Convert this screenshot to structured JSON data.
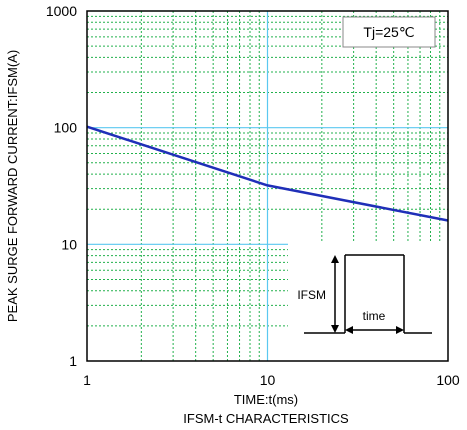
{
  "chart_data": {
    "type": "line",
    "title": "IFSM-t CHARACTERISTICS",
    "xlabel": "TIME:t(ms)",
    "ylabel": "PEAK SURGE FORWARD CURRENT:IFSM(A)",
    "x_scale": "log",
    "y_scale": "log",
    "xlim": [
      1,
      100
    ],
    "ylim": [
      1,
      1000
    ],
    "x_ticks": [
      "1",
      "10",
      "100"
    ],
    "y_ticks": [
      "1",
      "10",
      "100",
      "1000"
    ],
    "grid": true,
    "annotation": "Tj=25℃",
    "series": [
      {
        "x": [
          1,
          10,
          100
        ],
        "y": [
          102,
          32,
          16
        ]
      }
    ],
    "inset": {
      "amplitude_label": "IFSM",
      "duration_label": "time"
    }
  },
  "colors": {
    "series": "#1f2fb8",
    "major_grid": "#5bc8f0",
    "minor_grid": "#22b14c",
    "frame": "#000000"
  }
}
